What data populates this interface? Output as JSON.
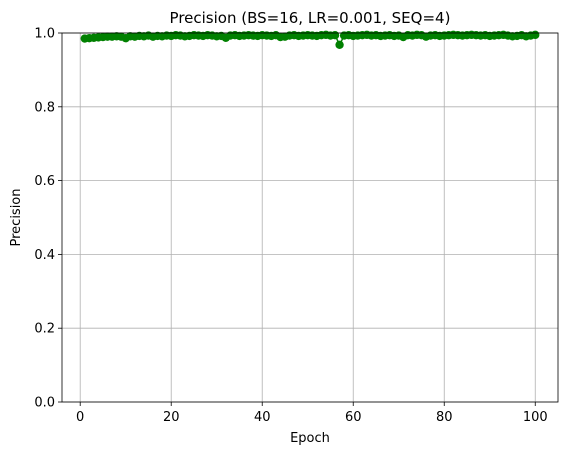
{
  "chart_data": {
    "type": "line",
    "title": "Precision (BS=16, LR=0.001, SEQ=4)",
    "xlabel": "Epoch",
    "ylabel": "Precision",
    "xlim": [
      -4,
      105
    ],
    "ylim": [
      0.0,
      1.0
    ],
    "xticks": [
      "0",
      "20",
      "40",
      "60",
      "80",
      "100"
    ],
    "yticks": [
      "0.0",
      "0.2",
      "0.4",
      "0.6",
      "0.8",
      "1.0"
    ],
    "grid": true,
    "color": "#008000",
    "marker": "circle",
    "series": [
      {
        "x": [
          1,
          2,
          3,
          4,
          5,
          6,
          7,
          8,
          9,
          10,
          11,
          12,
          13,
          14,
          15,
          16,
          17,
          18,
          19,
          20,
          21,
          22,
          23,
          24,
          25,
          26,
          27,
          28,
          29,
          30,
          31,
          32,
          33,
          34,
          35,
          36,
          37,
          38,
          39,
          40,
          41,
          42,
          43,
          44,
          45,
          46,
          47,
          48,
          49,
          50,
          51,
          52,
          53,
          54,
          55,
          56,
          57,
          58,
          59,
          60,
          61,
          62,
          63,
          64,
          65,
          66,
          67,
          68,
          69,
          70,
          71,
          72,
          73,
          74,
          75,
          76,
          77,
          78,
          79,
          80,
          81,
          82,
          83,
          84,
          85,
          86,
          87,
          88,
          89,
          90,
          91,
          92,
          93,
          94,
          95,
          96,
          97,
          98,
          99,
          100
        ],
        "values": [
          0.985,
          0.986,
          0.987,
          0.988,
          0.989,
          0.99,
          0.99,
          0.991,
          0.99,
          0.986,
          0.991,
          0.99,
          0.992,
          0.991,
          0.993,
          0.99,
          0.992,
          0.991,
          0.993,
          0.992,
          0.994,
          0.993,
          0.991,
          0.992,
          0.994,
          0.993,
          0.992,
          0.994,
          0.993,
          0.991,
          0.992,
          0.987,
          0.993,
          0.994,
          0.992,
          0.993,
          0.994,
          0.993,
          0.992,
          0.994,
          0.993,
          0.992,
          0.994,
          0.989,
          0.99,
          0.993,
          0.994,
          0.992,
          0.993,
          0.994,
          0.993,
          0.992,
          0.994,
          0.995,
          0.993,
          0.994,
          0.968,
          0.993,
          0.994,
          0.992,
          0.993,
          0.994,
          0.995,
          0.993,
          0.994,
          0.992,
          0.993,
          0.994,
          0.992,
          0.993,
          0.989,
          0.994,
          0.993,
          0.995,
          0.994,
          0.99,
          0.993,
          0.994,
          0.992,
          0.993,
          0.994,
          0.995,
          0.994,
          0.993,
          0.994,
          0.995,
          0.994,
          0.993,
          0.994,
          0.992,
          0.993,
          0.994,
          0.995,
          0.993,
          0.991,
          0.992,
          0.994,
          0.991,
          0.993,
          0.995
        ]
      }
    ]
  }
}
